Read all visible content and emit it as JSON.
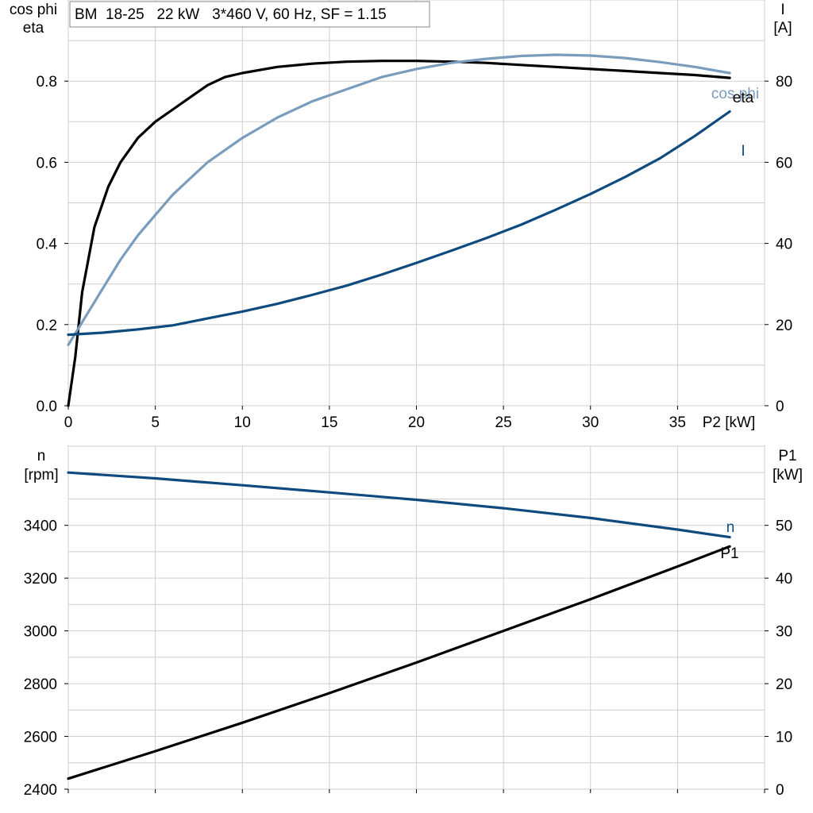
{
  "colors": {
    "eta": "#000000",
    "cosphi": "#7a9cbd",
    "current": "#0e4a7e",
    "n": "#0e4a7e",
    "p1": "#000000",
    "grid": "#cfcfcf"
  },
  "chart_data": [
    {
      "type": "line",
      "title": "BM  18-25   22 kW   3*460 V, 60 Hz, SF = 1.15",
      "xlabel": "P2 [kW]",
      "ylabel_left_line1": "cos phi",
      "ylabel_left_line2": "eta",
      "ylabel_right_line1": "I",
      "ylabel_right_line2": "[A]",
      "xlim": [
        0,
        40
      ],
      "ylim_left": [
        0,
        1.0
      ],
      "ylim_right": [
        0,
        100
      ],
      "x_ticks": [
        "0",
        "5",
        "10",
        "15",
        "20",
        "25",
        "30",
        "35"
      ],
      "y_ticks_left": [
        "0.0",
        "0.2",
        "0.4",
        "0.6",
        "0.8"
      ],
      "y_ticks_right": [
        "0",
        "20",
        "40",
        "60",
        "80"
      ],
      "grid": true,
      "series": [
        {
          "name": "eta",
          "axis": "left",
          "x": [
            0,
            0.4,
            0.8,
            1.5,
            2.3,
            3,
            4,
            5,
            6,
            7,
            8,
            9,
            10,
            12,
            14,
            16,
            18,
            20,
            22,
            24,
            26,
            28,
            30,
            32,
            34,
            36,
            38
          ],
          "y": [
            0.0,
            0.12,
            0.28,
            0.44,
            0.54,
            0.6,
            0.66,
            0.7,
            0.73,
            0.76,
            0.79,
            0.81,
            0.82,
            0.835,
            0.843,
            0.848,
            0.85,
            0.85,
            0.848,
            0.845,
            0.84,
            0.835,
            0.83,
            0.825,
            0.82,
            0.815,
            0.808
          ]
        },
        {
          "name": "cos phi",
          "axis": "left",
          "x": [
            0,
            1,
            2,
            3,
            4,
            5,
            6,
            8,
            10,
            12,
            14,
            16,
            18,
            20,
            22,
            24,
            26,
            28,
            30,
            32,
            34,
            36,
            38
          ],
          "y": [
            0.15,
            0.22,
            0.29,
            0.36,
            0.42,
            0.47,
            0.52,
            0.6,
            0.66,
            0.71,
            0.75,
            0.78,
            0.81,
            0.83,
            0.845,
            0.855,
            0.862,
            0.865,
            0.863,
            0.857,
            0.847,
            0.835,
            0.82
          ]
        },
        {
          "name": "I",
          "axis": "right",
          "x": [
            0,
            2,
            4,
            6,
            8,
            10,
            12,
            14,
            16,
            18,
            20,
            22,
            24,
            26,
            28,
            30,
            32,
            34,
            36,
            38
          ],
          "y": [
            17.5,
            18,
            18.8,
            19.8,
            21.5,
            23.2,
            25.1,
            27.3,
            29.6,
            32.3,
            35.2,
            38.2,
            41.3,
            44.6,
            48.3,
            52.2,
            56.4,
            61.0,
            66.5,
            72.5
          ]
        }
      ]
    },
    {
      "type": "line",
      "ylabel_left_line1": "n",
      "ylabel_left_line2": "[rpm]",
      "ylabel_right_line1": "P1",
      "ylabel_right_line2": "[kW]",
      "xlim": [
        0,
        40
      ],
      "ylim_left": [
        2400,
        3700
      ],
      "ylim_right": [
        0,
        65
      ],
      "y_ticks_left": [
        "2400",
        "2600",
        "2800",
        "3000",
        "3200",
        "3400"
      ],
      "y_ticks_right": [
        "0",
        "10",
        "20",
        "30",
        "40",
        "50"
      ],
      "grid": true,
      "series": [
        {
          "name": "n",
          "axis": "left",
          "x": [
            0,
            5,
            10,
            15,
            20,
            25,
            30,
            35,
            38
          ],
          "y": [
            3600,
            3578,
            3552,
            3525,
            3497,
            3465,
            3428,
            3384,
            3355
          ]
        },
        {
          "name": "P1",
          "axis": "right",
          "x": [
            0,
            5,
            10,
            15,
            20,
            25,
            30,
            35,
            38
          ],
          "y": [
            2.0,
            7.2,
            12.6,
            18.2,
            24.0,
            30.0,
            36.0,
            42.2,
            46.0
          ]
        }
      ]
    }
  ]
}
